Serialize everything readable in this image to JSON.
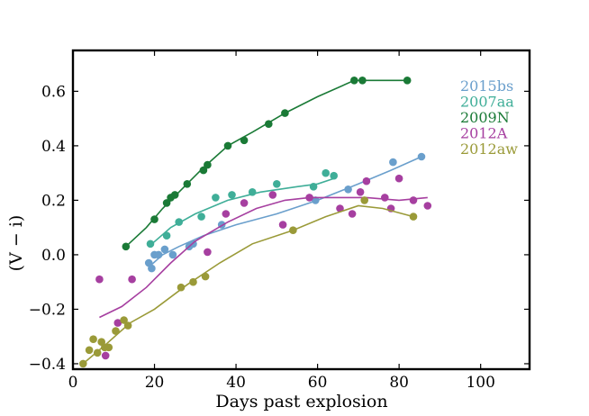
{
  "chart_data": {
    "type": "scatter",
    "title": "",
    "xlabel": "Days past explosion",
    "ylabel": "(V − i)",
    "xlim": [
      0,
      112
    ],
    "ylim": [
      -0.42,
      0.75
    ],
    "xticks": [
      0,
      20,
      40,
      60,
      80,
      100
    ],
    "yticks": [
      -0.4,
      -0.2,
      0.0,
      0.2,
      0.4,
      0.6
    ],
    "xtick_labels": [
      "0",
      "20",
      "40",
      "60",
      "80",
      "100"
    ],
    "ytick_labels": [
      "−0.4",
      "−0.2",
      "0.0",
      "0.2",
      "0.4",
      "0.6"
    ],
    "grid": false,
    "legend_position": "top-right",
    "series": [
      {
        "name": "2015bs",
        "color": "#6a9fcc",
        "points": [
          [
            18.6,
            -0.03
          ],
          [
            19.3,
            -0.05
          ],
          [
            20.0,
            0.0
          ],
          [
            21.0,
            0.0
          ],
          [
            22.5,
            0.02
          ],
          [
            24.5,
            0.0
          ],
          [
            28.5,
            0.03
          ],
          [
            29.5,
            0.04
          ],
          [
            36.5,
            0.11
          ],
          [
            59.5,
            0.2
          ],
          [
            67.5,
            0.24
          ],
          [
            78.5,
            0.34
          ],
          [
            85.5,
            0.36
          ]
        ],
        "curve": [
          [
            19.0,
            -0.04
          ],
          [
            22.0,
            0.0
          ],
          [
            26.0,
            0.03
          ],
          [
            32.0,
            0.07
          ],
          [
            40.0,
            0.11
          ],
          [
            50.0,
            0.15
          ],
          [
            60.0,
            0.2
          ],
          [
            70.0,
            0.26
          ],
          [
            78.0,
            0.31
          ],
          [
            85.5,
            0.36
          ]
        ]
      },
      {
        "name": "2007aa",
        "color": "#3fae98",
        "points": [
          [
            19.0,
            0.04
          ],
          [
            23.0,
            0.07
          ],
          [
            26.0,
            0.12
          ],
          [
            31.5,
            0.14
          ],
          [
            35.0,
            0.21
          ],
          [
            39.0,
            0.22
          ],
          [
            44.0,
            0.23
          ],
          [
            50.0,
            0.26
          ],
          [
            59.0,
            0.25
          ],
          [
            62.0,
            0.3
          ],
          [
            64.0,
            0.29
          ]
        ],
        "curve": [
          [
            19.0,
            0.035
          ],
          [
            24.0,
            0.1
          ],
          [
            30.0,
            0.15
          ],
          [
            38.0,
            0.2
          ],
          [
            46.0,
            0.23
          ],
          [
            55.0,
            0.25
          ],
          [
            60.0,
            0.26
          ],
          [
            64.0,
            0.28
          ]
        ]
      },
      {
        "name": "2009N",
        "color": "#1a7a36",
        "points": [
          [
            13.0,
            0.03
          ],
          [
            20.0,
            0.13
          ],
          [
            23.0,
            0.19
          ],
          [
            24.0,
            0.21
          ],
          [
            25.0,
            0.22
          ],
          [
            28.0,
            0.26
          ],
          [
            32.0,
            0.31
          ],
          [
            33.0,
            0.33
          ],
          [
            38.0,
            0.4
          ],
          [
            42.0,
            0.42
          ],
          [
            48.0,
            0.48
          ],
          [
            52.0,
            0.52
          ],
          [
            69.0,
            0.64
          ],
          [
            71.0,
            0.64
          ],
          [
            82.0,
            0.64
          ]
        ],
        "curve": [
          [
            13.0,
            0.03
          ],
          [
            18.0,
            0.1
          ],
          [
            22.0,
            0.17
          ],
          [
            26.0,
            0.23
          ],
          [
            32.0,
            0.32
          ],
          [
            38.0,
            0.4
          ],
          [
            44.0,
            0.45
          ],
          [
            52.0,
            0.52
          ],
          [
            60.0,
            0.58
          ],
          [
            69.0,
            0.64
          ],
          [
            82.0,
            0.64
          ]
        ]
      },
      {
        "name": "2012A",
        "color": "#a63fa0",
        "points": [
          [
            6.5,
            -0.09
          ],
          [
            8.0,
            -0.37
          ],
          [
            11.0,
            -0.25
          ],
          [
            14.5,
            -0.09
          ],
          [
            33.0,
            0.01
          ],
          [
            37.5,
            0.15
          ],
          [
            42.0,
            0.19
          ],
          [
            49.0,
            0.22
          ],
          [
            51.5,
            0.11
          ],
          [
            58.0,
            0.21
          ],
          [
            65.5,
            0.17
          ],
          [
            68.5,
            0.15
          ],
          [
            70.5,
            0.23
          ],
          [
            72.0,
            0.27
          ],
          [
            76.5,
            0.21
          ],
          [
            78.0,
            0.17
          ],
          [
            80.0,
            0.28
          ],
          [
            83.5,
            0.2
          ],
          [
            87.0,
            0.18
          ]
        ],
        "curve": [
          [
            6.5,
            -0.23
          ],
          [
            12.0,
            -0.19
          ],
          [
            18.0,
            -0.12
          ],
          [
            24.0,
            -0.03
          ],
          [
            30.0,
            0.05
          ],
          [
            38.0,
            0.12
          ],
          [
            45.0,
            0.17
          ],
          [
            52.0,
            0.2
          ],
          [
            58.0,
            0.21
          ],
          [
            65.0,
            0.21
          ],
          [
            72.0,
            0.21
          ],
          [
            80.0,
            0.2
          ],
          [
            87.0,
            0.21
          ]
        ]
      },
      {
        "name": "2012aw",
        "color": "#9a9a38",
        "points": [
          [
            2.5,
            -0.4
          ],
          [
            4.0,
            -0.35
          ],
          [
            5.0,
            -0.31
          ],
          [
            6.0,
            -0.36
          ],
          [
            7.0,
            -0.32
          ],
          [
            7.8,
            -0.34
          ],
          [
            8.8,
            -0.34
          ],
          [
            10.5,
            -0.28
          ],
          [
            12.5,
            -0.24
          ],
          [
            13.5,
            -0.26
          ],
          [
            26.5,
            -0.12
          ],
          [
            29.5,
            -0.1
          ],
          [
            32.5,
            -0.08
          ],
          [
            54.0,
            0.09
          ],
          [
            71.5,
            0.2
          ],
          [
            83.5,
            0.14
          ]
        ],
        "curve": [
          [
            2.5,
            -0.4
          ],
          [
            8.0,
            -0.33
          ],
          [
            14.0,
            -0.25
          ],
          [
            20.0,
            -0.2
          ],
          [
            28.0,
            -0.11
          ],
          [
            36.0,
            -0.03
          ],
          [
            44.0,
            0.04
          ],
          [
            54.0,
            0.09
          ],
          [
            62.0,
            0.14
          ],
          [
            70.0,
            0.18
          ],
          [
            76.0,
            0.17
          ],
          [
            83.5,
            0.14
          ]
        ]
      }
    ]
  }
}
